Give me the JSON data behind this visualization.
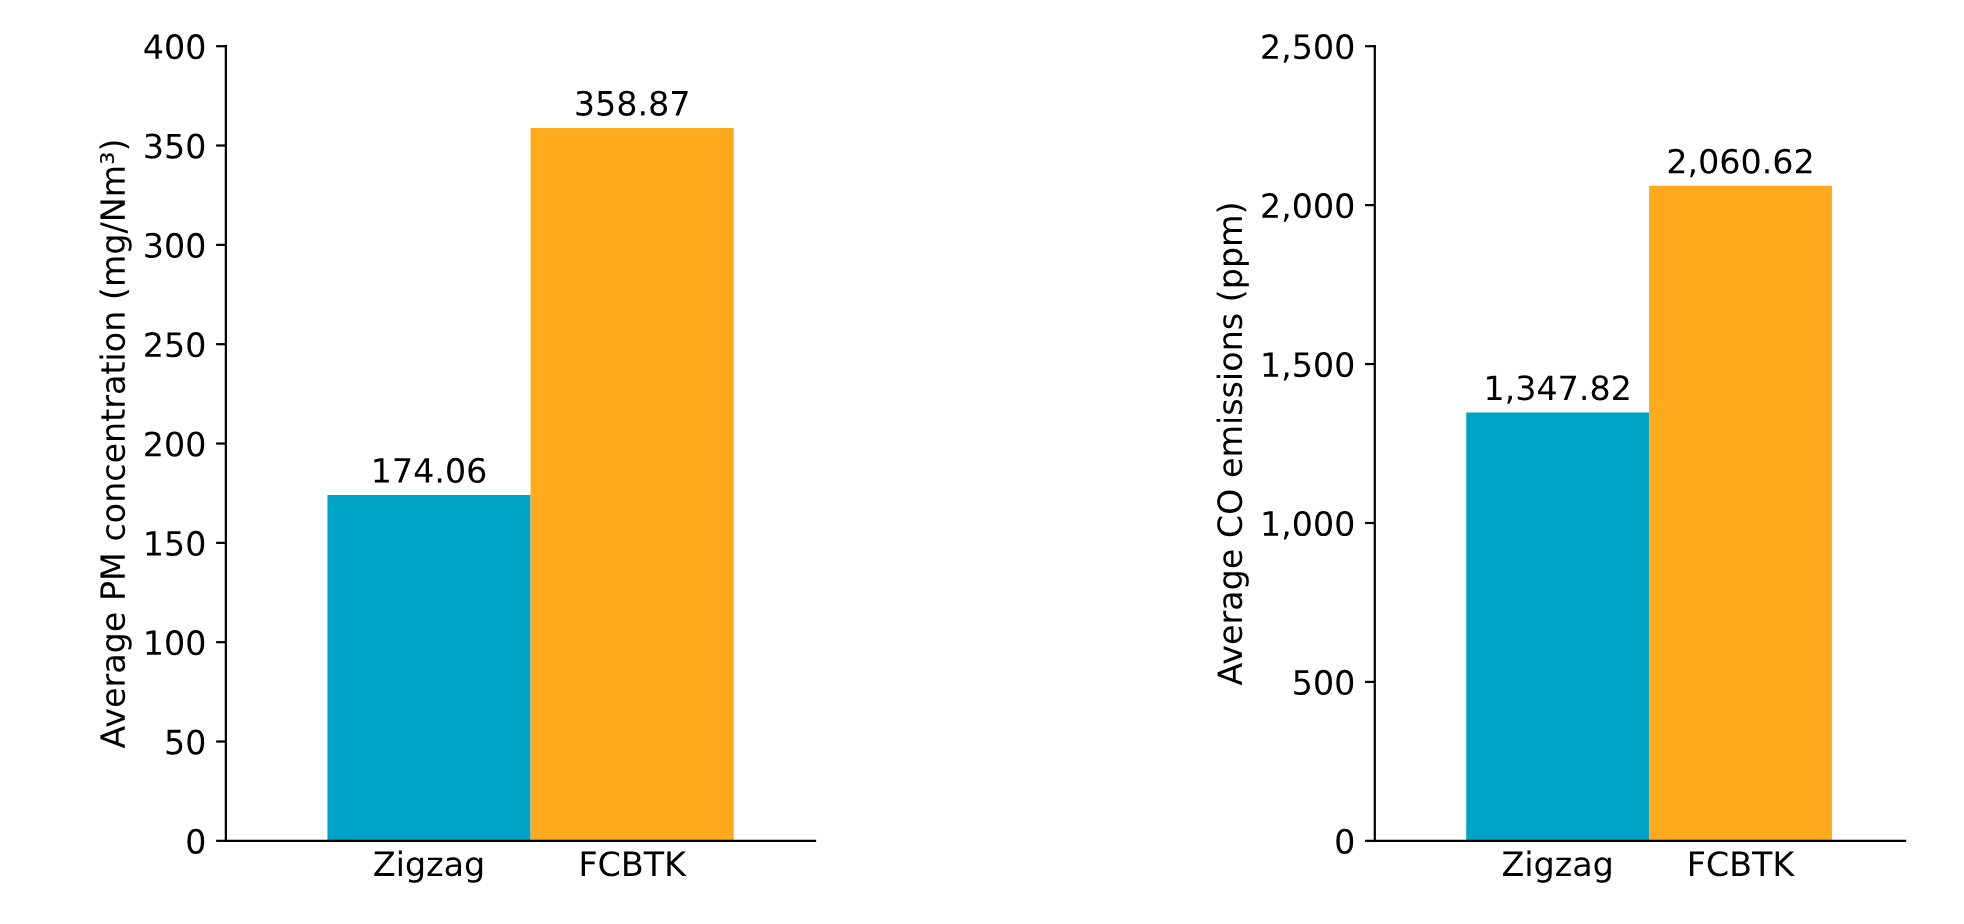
{
  "chart_data": [
    {
      "type": "bar",
      "ylabel": "Average PM concentration (mg/Nm³)",
      "categories": [
        "Zigzag",
        "FCBTK"
      ],
      "values": [
        174.06,
        358.87
      ],
      "colors": [
        "#00a3c8",
        "#ffaa1c"
      ],
      "value_labels": [
        "174.06",
        "358.87"
      ],
      "ylim": [
        0,
        400
      ],
      "yticks": [
        0,
        50,
        100,
        150,
        200,
        250,
        300,
        350,
        400
      ],
      "grid": false,
      "legend": false
    },
    {
      "type": "bar",
      "ylabel": "Average CO emissions (ppm)",
      "categories": [
        "Zigzag",
        "FCBTK"
      ],
      "values": [
        1347.82,
        2060.62
      ],
      "colors": [
        "#00a3c8",
        "#ffaa1c"
      ],
      "value_labels": [
        "1,347.82",
        "2,060.62"
      ],
      "ylim": [
        0,
        2500
      ],
      "yticks": [
        0,
        500,
        {
          "value": 1000,
          "label": "1,000"
        },
        {
          "value": 1500,
          "label": "1,500"
        },
        {
          "value": 2000,
          "label": "2,000"
        },
        {
          "value": 2500,
          "label": "2,500"
        }
      ],
      "grid": false,
      "legend": false
    }
  ]
}
